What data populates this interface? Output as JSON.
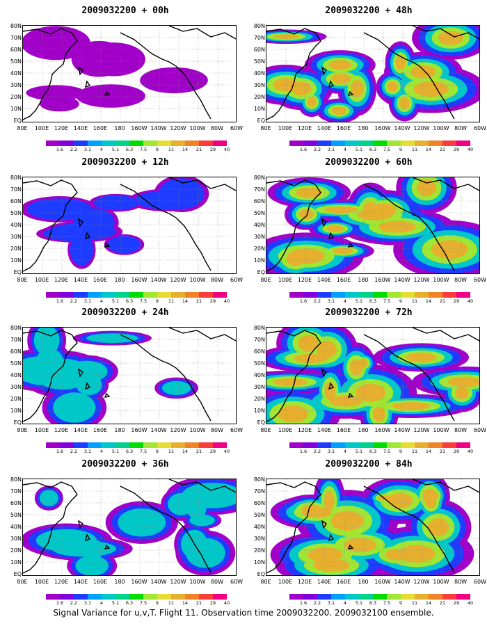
{
  "caption": "Signal Variance for u,v,T. Flight 11. Observation time 2009032200. 2009032100 ensemble.",
  "lat_labels": [
    "80N",
    "70N",
    "60N",
    "50N",
    "40N",
    "30N",
    "20N",
    "10N",
    "EQ"
  ],
  "lon_labels": [
    "80E",
    "100E",
    "120E",
    "140E",
    "160E",
    "180",
    "160W",
    "140W",
    "120W",
    "100W",
    "80W",
    "60W"
  ],
  "colorbar": {
    "levels": [
      "1.6",
      "2.2",
      "3.1",
      "4",
      "5.1",
      "6.3",
      "7.5",
      "9",
      "11",
      "14",
      "21",
      "29",
      "40"
    ],
    "colors": [
      "#a000c8",
      "#8200dc",
      "#1e3cff",
      "#00a0ff",
      "#00c8c8",
      "#00d28c",
      "#00dc00",
      "#a0e632",
      "#e6dc32",
      "#e6af2d",
      "#f08228",
      "#fa3c3c",
      "#f00082"
    ]
  },
  "panels": [
    {
      "title": "2009032200 + 00h"
    },
    {
      "title": "2009032200 + 48h"
    },
    {
      "title": "2009032200 + 12h"
    },
    {
      "title": "2009032200 + 60h"
    },
    {
      "title": "2009032200 + 24h"
    },
    {
      "title": "2009032200 + 72h"
    },
    {
      "title": "2009032200 + 36h"
    },
    {
      "title": "2009032200 + 84h"
    }
  ]
}
